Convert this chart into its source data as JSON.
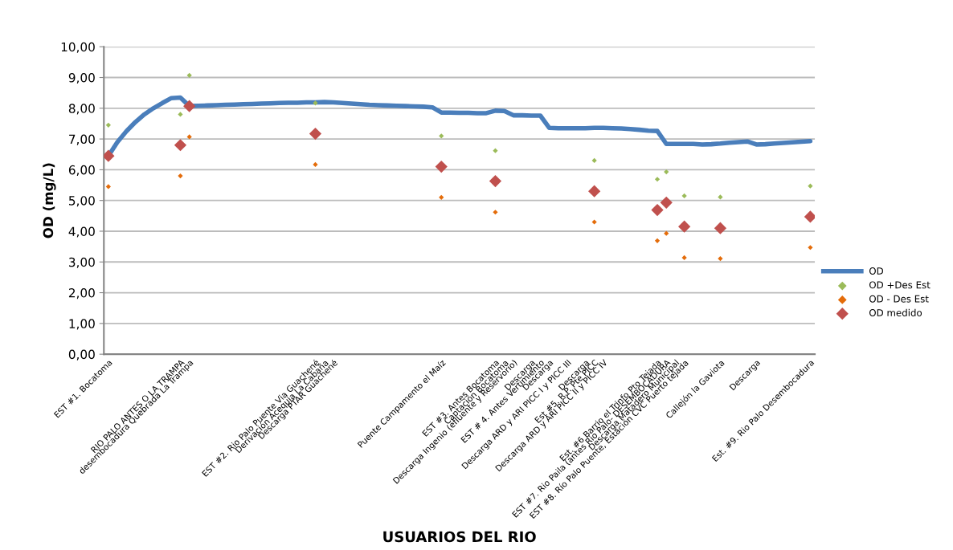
{
  "chart_data": {
    "type": "line",
    "xlabel": "USUARIOS DEL RIO",
    "ylabel": "OD (mg/L)",
    "categories": [
      "EST #1. Bocatoma",
      null,
      null,
      null,
      null,
      null,
      null,
      null,
      "RIO PALO ANTES O LA TRAMPA",
      "desembocadura Quebrada La Trampa",
      null,
      null,
      null,
      null,
      null,
      null,
      null,
      null,
      null,
      null,
      null,
      null,
      null,
      "EST #2. Rio Palo Puente Via Guachené",
      "Derivación Acequia La Cabaña",
      "Descarga PTAR Guachené",
      null,
      null,
      null,
      null,
      null,
      null,
      null,
      null,
      null,
      null,
      null,
      "Puente Campamento el Maíz",
      null,
      null,
      null,
      null,
      null,
      "EST #3. Antes Bocatoma",
      "Captación Bocatoma",
      "Descarga Ingenio (efluente y Reservorio)",
      null,
      "Descarga",
      "EST # 4. Antes Vertimiento",
      "Descarga",
      null,
      "Descarga ARD y ARI PICC I y PICC III",
      null,
      "Descarga",
      "Est #5. R.P. Pte PICC",
      "Descarga ARD y ARI PICC II y PICC IV",
      null,
      null,
      null,
      null,
      null,
      "Est. #6 Barrio el Trinfo Pto Tejada",
      "EST #7. Rio Paila (antes Rio Palo- DESEMBOCADURA",
      "Descarga Matadero Municipal",
      "EST #8. Río Palo Puente, Estación CVC Puerto tejada",
      null,
      null,
      null,
      "Callejón la Gaviota",
      null,
      null,
      null,
      "Descarga",
      null,
      null,
      null,
      null,
      null,
      "Est. #9. Rio Palo Desembocadura"
    ],
    "series": [
      {
        "name": "OD",
        "color": "#4a7ebb",
        "marker": "none",
        "values": [
          6.45,
          6.9,
          7.25,
          7.55,
          7.8,
          8.0,
          8.17,
          8.33,
          8.35,
          8.07,
          8.08,
          8.09,
          8.1,
          8.11,
          8.12,
          8.13,
          8.14,
          8.15,
          8.16,
          8.17,
          8.18,
          8.18,
          8.19,
          8.19,
          8.2,
          8.19,
          8.17,
          8.15,
          8.13,
          8.11,
          8.1,
          8.09,
          8.08,
          8.07,
          8.06,
          8.05,
          8.03,
          7.86,
          7.86,
          7.85,
          7.85,
          7.84,
          7.84,
          7.92,
          7.91,
          7.77,
          7.77,
          7.76,
          7.76,
          7.36,
          7.35,
          7.35,
          7.35,
          7.35,
          7.36,
          7.36,
          7.35,
          7.34,
          7.32,
          7.3,
          7.27,
          7.26,
          6.84,
          6.84,
          6.84,
          6.84,
          6.82,
          6.83,
          6.85,
          6.88,
          6.9,
          6.92,
          6.82,
          6.83,
          6.85,
          6.87,
          6.89,
          6.91,
          6.93
        ]
      },
      {
        "name": "OD +Des Est",
        "type": "scatter",
        "color": "#9bbb59",
        "marker": "diamond",
        "values": [
          7.45,
          null,
          null,
          null,
          null,
          null,
          null,
          null,
          7.8,
          9.07,
          null,
          null,
          null,
          null,
          null,
          null,
          null,
          null,
          null,
          null,
          null,
          null,
          null,
          8.17,
          null,
          null,
          null,
          null,
          null,
          null,
          null,
          null,
          null,
          null,
          null,
          null,
          null,
          7.1,
          null,
          null,
          null,
          null,
          null,
          6.62,
          null,
          null,
          null,
          null,
          null,
          null,
          null,
          null,
          null,
          null,
          6.3,
          null,
          null,
          null,
          null,
          null,
          null,
          5.69,
          5.93,
          null,
          5.15,
          null,
          null,
          null,
          5.11,
          null,
          null,
          null,
          null,
          null,
          null,
          null,
          null,
          null,
          5.47
        ]
      },
      {
        "name": "OD - Des Est",
        "type": "scatter",
        "color": "#e46c0a",
        "marker": "diamond",
        "values": [
          5.45,
          null,
          null,
          null,
          null,
          null,
          null,
          null,
          5.8,
          7.07,
          null,
          null,
          null,
          null,
          null,
          null,
          null,
          null,
          null,
          null,
          null,
          null,
          null,
          6.17,
          null,
          null,
          null,
          null,
          null,
          null,
          null,
          null,
          null,
          null,
          null,
          null,
          null,
          5.1,
          null,
          null,
          null,
          null,
          null,
          4.62,
          null,
          null,
          null,
          null,
          null,
          null,
          null,
          null,
          null,
          null,
          4.3,
          null,
          null,
          null,
          null,
          null,
          null,
          3.69,
          3.93,
          null,
          3.14,
          null,
          null,
          null,
          3.11,
          null,
          null,
          null,
          null,
          null,
          null,
          null,
          null,
          null,
          3.47
        ]
      },
      {
        "name": "OD medido",
        "type": "scatter",
        "color": "#c0504d",
        "marker": "diamond",
        "values": [
          6.45,
          null,
          null,
          null,
          null,
          null,
          null,
          null,
          6.8,
          8.07,
          null,
          null,
          null,
          null,
          null,
          null,
          null,
          null,
          null,
          null,
          null,
          null,
          null,
          7.17,
          null,
          null,
          null,
          null,
          null,
          null,
          null,
          null,
          null,
          null,
          null,
          null,
          null,
          6.1,
          null,
          null,
          null,
          null,
          null,
          5.63,
          null,
          null,
          null,
          null,
          null,
          null,
          null,
          null,
          null,
          null,
          5.3,
          null,
          null,
          null,
          null,
          null,
          null,
          4.69,
          4.93,
          null,
          4.15,
          null,
          null,
          null,
          4.1,
          null,
          null,
          null,
          null,
          null,
          null,
          null,
          null,
          null,
          4.47
        ]
      }
    ],
    "ylim": [
      0,
      10
    ],
    "yticks": [
      {
        "value": 0,
        "label": "0,00"
      },
      {
        "value": 1,
        "label": "1,00"
      },
      {
        "value": 2,
        "label": "2,00"
      },
      {
        "value": 3,
        "label": "3,00"
      },
      {
        "value": 4,
        "label": "4,00"
      },
      {
        "value": 5,
        "label": "5,00"
      },
      {
        "value": 6,
        "label": "6,00"
      },
      {
        "value": 7,
        "label": "7,00"
      },
      {
        "value": 8,
        "label": "8,00"
      },
      {
        "value": 9,
        "label": "9,00"
      },
      {
        "value": 10,
        "label": "10,00"
      }
    ],
    "grid": "y",
    "legend": "right"
  }
}
